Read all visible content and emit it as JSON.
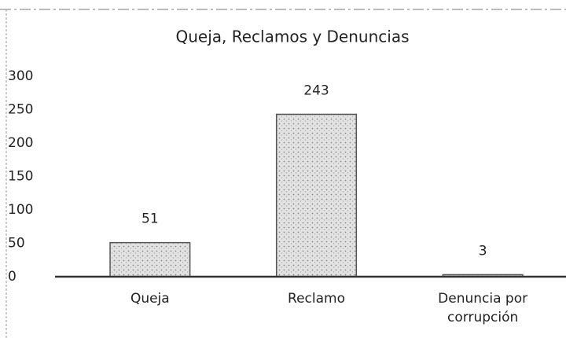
{
  "chart_data": {
    "type": "bar",
    "title": "Queja, Reclamos y Denuncias",
    "categories": [
      "Queja",
      "Reclamo",
      "Denuncia por corrupción"
    ],
    "values": [
      51,
      243,
      3
    ],
    "color": "#d6d6d6",
    "ylim": [
      0,
      300
    ],
    "yticks": [
      0,
      50,
      100,
      150,
      200,
      250,
      300
    ],
    "grid": false
  }
}
